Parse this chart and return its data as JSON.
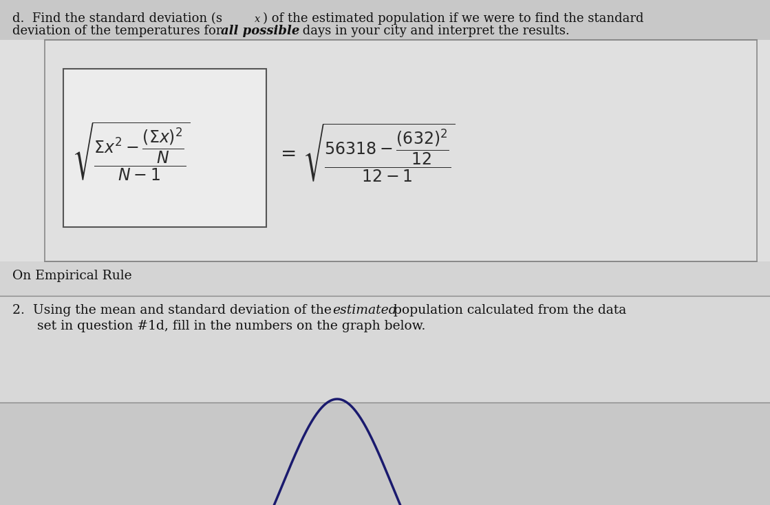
{
  "bg_top": "#c8c8c8",
  "bg_formula": "#e8e8e8",
  "bg_mid": "#d4d4d4",
  "bg_section2": "#d8d8d8",
  "bg_bottom": "#cccccc",
  "text_color": "#111111",
  "border_color": "#666666",
  "curve_color": "#1a1a6e",
  "formula_box_color": "#f5f5f5",
  "line_color": "#aaaaaa",
  "header_line1a": "d.  Find the standard deviation (s",
  "header_line1b": "x",
  "header_line1c": ") of the estimated population if we were to find the standard",
  "header_line2a": "deviation of the temperatures for ",
  "header_line2b": "all possible",
  "header_line2c": " days in your city and interpret the results.",
  "section_label": "On Empirical Rule",
  "q2_part1": "2.  Using the mean and standard deviation of the ",
  "q2_italic": "estimated",
  "q2_part2": " population calculated from the data",
  "q2_line2": "      set in question #1d, fill in the numbers on the graph below."
}
